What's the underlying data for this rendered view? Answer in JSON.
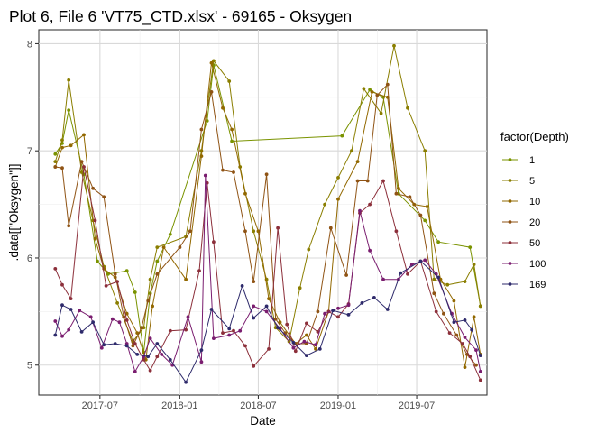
{
  "chart_data": {
    "type": "line",
    "title": "Plot 6, File 6 'VT75_CTD.xlsx' - 69165  -  Oksygen",
    "xlabel": "Date",
    "ylabel": ".data[[\"Oksygen\"]]",
    "x_ticks": [
      "2017-07",
      "2018-01",
      "2018-07",
      "2019-01",
      "2019-07"
    ],
    "y_ticks": [
      5,
      6,
      7,
      8
    ],
    "xlim": [
      "2017-02-10",
      "2019-12-10"
    ],
    "ylim": [
      4.72,
      8.13
    ],
    "grid": true,
    "legend": {
      "title": "factor(Depth)",
      "position": "right"
    },
    "dates": [
      "2017-03-20",
      "2017-04-05",
      "2017-04-20",
      "2017-05-05",
      "2017-05-25",
      "2017-06-15",
      "2017-07-05",
      "2017-07-20",
      "2017-08-10",
      "2017-09-01",
      "2017-09-20",
      "2017-10-10",
      "2017-10-25",
      "2017-11-10",
      "2017-12-10",
      "2018-01-10",
      "2018-02-01",
      "2018-02-20",
      "2018-03-10",
      "2018-04-05",
      "2018-04-25",
      "2018-05-15",
      "2018-06-10",
      "2018-07-01",
      "2018-07-20",
      "2018-08-10",
      "2018-09-01",
      "2018-09-25",
      "2018-10-20",
      "2018-11-10",
      "2018-12-01",
      "2018-12-25",
      "2019-01-20",
      "2019-02-15",
      "2019-03-15",
      "2019-04-15",
      "2019-05-15",
      "2019-06-10",
      "2019-07-05",
      "2019-08-01",
      "2019-09-01",
      "2019-10-01",
      "2019-10-25",
      "2019-11-15",
      "2019-11-25"
    ],
    "series": [
      {
        "name": "1",
        "color": "#7a9300",
        "points": [
          [
            "2017-03-20",
            6.97
          ],
          [
            "2017-04-05",
            7.07
          ],
          [
            "2017-04-20",
            7.38
          ],
          [
            "2017-05-25",
            6.78
          ],
          [
            "2017-06-25",
            5.97
          ],
          [
            "2017-07-20",
            5.85
          ],
          [
            "2017-09-01",
            5.88
          ],
          [
            "2017-09-20",
            5.68
          ],
          [
            "2017-10-10",
            5.12
          ],
          [
            "2017-10-25",
            5.67
          ],
          [
            "2017-11-10",
            5.97
          ],
          [
            "2017-12-10",
            6.22
          ],
          [
            "2018-03-05",
            7.28
          ],
          [
            "2018-03-20",
            7.8
          ],
          [
            "2018-05-01",
            7.09
          ],
          [
            "2019-01-10",
            7.14
          ],
          [
            "2019-03-15",
            7.57
          ],
          [
            "2019-04-15",
            7.5
          ],
          [
            "2019-05-20",
            6.6
          ],
          [
            "2019-07-20",
            6.35
          ],
          [
            "2019-08-20",
            6.15
          ],
          [
            "2019-11-01",
            6.1
          ],
          [
            "2019-11-25",
            5.55
          ]
        ]
      },
      {
        "name": "5",
        "color": "#8a7e00",
        "points": [
          [
            "2017-03-20",
            6.9
          ],
          [
            "2017-04-05",
            7.1
          ],
          [
            "2017-04-20",
            7.66
          ],
          [
            "2017-05-20",
            6.8
          ],
          [
            "2017-06-15",
            6.35
          ],
          [
            "2017-07-10",
            5.92
          ],
          [
            "2017-08-10",
            5.58
          ],
          [
            "2017-09-15",
            5.22
          ],
          [
            "2017-10-10",
            5.35
          ],
          [
            "2017-10-25",
            5.8
          ],
          [
            "2017-11-10",
            6.1
          ],
          [
            "2018-01-15",
            6.2
          ],
          [
            "2018-02-20",
            7.0
          ],
          [
            "2018-03-20",
            7.84
          ],
          [
            "2018-04-25",
            7.65
          ],
          [
            "2018-05-20",
            6.85
          ],
          [
            "2018-06-20",
            6.25
          ],
          [
            "2018-07-20",
            5.8
          ],
          [
            "2018-08-10",
            5.35
          ],
          [
            "2018-09-10",
            5.22
          ],
          [
            "2018-10-05",
            5.72
          ],
          [
            "2018-10-25",
            6.08
          ],
          [
            "2018-12-01",
            6.5
          ],
          [
            "2019-01-01",
            6.75
          ],
          [
            "2019-02-01",
            7.0
          ],
          [
            "2019-03-01",
            7.58
          ],
          [
            "2019-04-10",
            7.35
          ],
          [
            "2019-05-10",
            7.98
          ],
          [
            "2019-06-10",
            7.4
          ],
          [
            "2019-07-20",
            7.0
          ],
          [
            "2019-08-10",
            5.8
          ],
          [
            "2019-09-10",
            5.75
          ],
          [
            "2019-10-20",
            5.78
          ],
          [
            "2019-11-10",
            5.94
          ],
          [
            "2019-11-25",
            5.55
          ]
        ]
      },
      {
        "name": "10",
        "color": "#926800",
        "points": [
          [
            "2017-03-20",
            6.85
          ],
          [
            "2017-04-05",
            7.03
          ],
          [
            "2017-04-25",
            7.05
          ],
          [
            "2017-05-25",
            7.15
          ],
          [
            "2017-06-20",
            6.18
          ],
          [
            "2017-07-10",
            5.9
          ],
          [
            "2017-08-05",
            5.82
          ],
          [
            "2017-09-01",
            5.48
          ],
          [
            "2017-09-25",
            5.3
          ],
          [
            "2017-10-15",
            5.05
          ],
          [
            "2017-10-30",
            5.55
          ],
          [
            "2017-11-25",
            6.1
          ],
          [
            "2018-01-15",
            5.8
          ],
          [
            "2018-02-20",
            6.95
          ],
          [
            "2018-03-15",
            7.82
          ],
          [
            "2018-04-10",
            7.4
          ],
          [
            "2018-05-01",
            7.2
          ],
          [
            "2018-06-01",
            6.6
          ],
          [
            "2018-07-01",
            6.25
          ],
          [
            "2018-07-25",
            5.62
          ],
          [
            "2018-08-20",
            5.4
          ],
          [
            "2018-09-25",
            5.2
          ],
          [
            "2018-10-20",
            5.28
          ],
          [
            "2018-11-10",
            5.15
          ],
          [
            "2018-12-10",
            5.5
          ],
          [
            "2019-01-01",
            6.55
          ],
          [
            "2019-02-15",
            6.9
          ],
          [
            "2019-03-20",
            7.55
          ],
          [
            "2019-04-25",
            7.5
          ],
          [
            "2019-05-20",
            6.65
          ],
          [
            "2019-06-25",
            6.5
          ],
          [
            "2019-07-25",
            6.48
          ],
          [
            "2019-08-25",
            5.8
          ],
          [
            "2019-09-25",
            5.6
          ],
          [
            "2019-10-20",
            4.98
          ],
          [
            "2019-11-10",
            5.45
          ],
          [
            "2019-11-25",
            5.1
          ]
        ]
      },
      {
        "name": "20",
        "color": "#8f5314",
        "points": [
          [
            "2017-03-20",
            6.85
          ],
          [
            "2017-04-05",
            6.84
          ],
          [
            "2017-04-20",
            6.3
          ],
          [
            "2017-05-20",
            6.9
          ],
          [
            "2017-06-15",
            6.65
          ],
          [
            "2017-07-10",
            6.57
          ],
          [
            "2017-08-05",
            5.85
          ],
          [
            "2017-08-25",
            5.45
          ],
          [
            "2017-09-15",
            5.18
          ],
          [
            "2017-10-05",
            5.35
          ],
          [
            "2017-10-20",
            5.6
          ],
          [
            "2017-11-10",
            5.85
          ],
          [
            "2018-01-01",
            6.1
          ],
          [
            "2018-01-25",
            6.25
          ],
          [
            "2018-02-20",
            7.2
          ],
          [
            "2018-03-15",
            7.55
          ],
          [
            "2018-04-10",
            6.82
          ],
          [
            "2018-05-05",
            6.8
          ],
          [
            "2018-06-01",
            6.25
          ],
          [
            "2018-06-20",
            5.78
          ],
          [
            "2018-07-20",
            6.78
          ],
          [
            "2018-08-10",
            5.43
          ],
          [
            "2018-09-01",
            5.3
          ],
          [
            "2018-09-25",
            5.2
          ],
          [
            "2018-10-20",
            5.2
          ],
          [
            "2018-11-15",
            5.5
          ],
          [
            "2018-12-15",
            6.28
          ],
          [
            "2019-01-20",
            5.84
          ],
          [
            "2019-02-15",
            6.72
          ],
          [
            "2019-03-10",
            6.72
          ],
          [
            "2019-04-01",
            7.52
          ],
          [
            "2019-04-25",
            7.62
          ],
          [
            "2019-05-15",
            6.6
          ],
          [
            "2019-06-15",
            6.57
          ],
          [
            "2019-07-10",
            6.4
          ],
          [
            "2019-08-10",
            5.67
          ],
          [
            "2019-09-01",
            5.48
          ],
          [
            "2019-10-01",
            5.28
          ],
          [
            "2019-10-25",
            5.1
          ],
          [
            "2019-11-15",
            5.0
          ]
        ]
      },
      {
        "name": "50",
        "color": "#8c2f3a",
        "points": [
          [
            "2017-03-20",
            5.9
          ],
          [
            "2017-04-05",
            5.75
          ],
          [
            "2017-04-25",
            5.62
          ],
          [
            "2017-05-25",
            6.85
          ],
          [
            "2017-06-20",
            6.35
          ],
          [
            "2017-07-15",
            5.74
          ],
          [
            "2017-08-10",
            5.78
          ],
          [
            "2017-09-01",
            5.42
          ],
          [
            "2017-09-20",
            5.2
          ],
          [
            "2017-10-10",
            5.05
          ],
          [
            "2017-10-25",
            4.95
          ],
          [
            "2017-11-10",
            5.08
          ],
          [
            "2017-12-10",
            5.32
          ],
          [
            "2018-01-15",
            5.33
          ],
          [
            "2018-02-15",
            5.88
          ],
          [
            "2018-03-05",
            6.7
          ],
          [
            "2018-03-20",
            6.15
          ],
          [
            "2018-04-10",
            5.3
          ],
          [
            "2018-05-05",
            5.32
          ],
          [
            "2018-06-01",
            5.18
          ],
          [
            "2018-06-20",
            4.99
          ],
          [
            "2018-07-25",
            5.15
          ],
          [
            "2018-08-15",
            6.28
          ],
          [
            "2018-09-05",
            5.38
          ],
          [
            "2018-09-25",
            5.13
          ],
          [
            "2018-10-20",
            5.39
          ],
          [
            "2018-11-15",
            5.31
          ],
          [
            "2018-12-10",
            5.5
          ],
          [
            "2019-01-01",
            5.45
          ],
          [
            "2019-01-25",
            5.57
          ],
          [
            "2019-02-20",
            6.42
          ],
          [
            "2019-03-15",
            6.5
          ],
          [
            "2019-04-15",
            6.72
          ],
          [
            "2019-05-15",
            6.25
          ],
          [
            "2019-06-10",
            5.85
          ],
          [
            "2019-07-10",
            5.97
          ],
          [
            "2019-08-15",
            5.5
          ],
          [
            "2019-09-15",
            5.3
          ],
          [
            "2019-10-15",
            5.2
          ],
          [
            "2019-11-01",
            5.08
          ],
          [
            "2019-11-25",
            4.86
          ]
        ]
      },
      {
        "name": "100",
        "color": "#7a1d6f",
        "points": [
          [
            "2017-03-20",
            5.41
          ],
          [
            "2017-04-05",
            5.27
          ],
          [
            "2017-04-20",
            5.33
          ],
          [
            "2017-05-15",
            5.51
          ],
          [
            "2017-06-10",
            5.45
          ],
          [
            "2017-07-05",
            5.16
          ],
          [
            "2017-07-30",
            5.43
          ],
          [
            "2017-08-15",
            5.4
          ],
          [
            "2017-09-01",
            5.2
          ],
          [
            "2017-09-20",
            4.94
          ],
          [
            "2017-10-10",
            5.08
          ],
          [
            "2017-10-25",
            5.25
          ],
          [
            "2017-11-20",
            5.1
          ],
          [
            "2017-12-15",
            5.0
          ],
          [
            "2018-01-20",
            5.45
          ],
          [
            "2018-02-20",
            5.03
          ],
          [
            "2018-03-01",
            6.77
          ],
          [
            "2018-03-20",
            5.25
          ],
          [
            "2018-04-25",
            5.28
          ],
          [
            "2018-05-20",
            5.32
          ],
          [
            "2018-06-20",
            5.55
          ],
          [
            "2018-07-20",
            5.5
          ],
          [
            "2018-08-20",
            5.34
          ],
          [
            "2018-09-20",
            5.16
          ],
          [
            "2018-10-15",
            5.22
          ],
          [
            "2018-11-10",
            5.19
          ],
          [
            "2018-12-01",
            5.48
          ],
          [
            "2019-01-01",
            5.53
          ],
          [
            "2019-01-25",
            5.56
          ],
          [
            "2019-02-20",
            6.44
          ],
          [
            "2019-03-15",
            6.07
          ],
          [
            "2019-04-15",
            5.8
          ],
          [
            "2019-05-20",
            5.8
          ],
          [
            "2019-06-20",
            5.94
          ],
          [
            "2019-07-20",
            5.98
          ],
          [
            "2019-08-15",
            5.85
          ],
          [
            "2019-09-20",
            5.48
          ],
          [
            "2019-10-20",
            5.26
          ],
          [
            "2019-11-15",
            5.14
          ],
          [
            "2019-11-25",
            4.94
          ]
        ]
      },
      {
        "name": "169",
        "color": "#2e2a6b",
        "points": [
          [
            "2017-03-20",
            5.28
          ],
          [
            "2017-04-05",
            5.56
          ],
          [
            "2017-04-25",
            5.52
          ],
          [
            "2017-05-20",
            5.31
          ],
          [
            "2017-06-15",
            5.4
          ],
          [
            "2017-07-10",
            5.19
          ],
          [
            "2017-08-05",
            5.2
          ],
          [
            "2017-09-01",
            5.18
          ],
          [
            "2017-09-25",
            5.1
          ],
          [
            "2017-10-20",
            5.08
          ],
          [
            "2017-11-10",
            5.2
          ],
          [
            "2017-12-10",
            5.05
          ],
          [
            "2018-01-15",
            4.84
          ],
          [
            "2018-02-20",
            5.14
          ],
          [
            "2018-03-15",
            5.52
          ],
          [
            "2018-04-25",
            5.34
          ],
          [
            "2018-05-25",
            5.74
          ],
          [
            "2018-06-20",
            5.44
          ],
          [
            "2018-07-20",
            5.55
          ],
          [
            "2018-08-15",
            5.35
          ],
          [
            "2018-09-20",
            5.21
          ],
          [
            "2018-10-20",
            5.09
          ],
          [
            "2018-11-20",
            5.15
          ],
          [
            "2018-12-20",
            5.51
          ],
          [
            "2019-01-25",
            5.47
          ],
          [
            "2019-02-25",
            5.58
          ],
          [
            "2019-03-25",
            5.63
          ],
          [
            "2019-04-25",
            5.52
          ],
          [
            "2019-05-25",
            5.86
          ],
          [
            "2019-07-10",
            5.97
          ],
          [
            "2019-08-20",
            5.82
          ],
          [
            "2019-09-25",
            5.4
          ],
          [
            "2019-10-20",
            5.42
          ],
          [
            "2019-11-05",
            5.33
          ],
          [
            "2019-11-25",
            5.09
          ]
        ]
      }
    ]
  }
}
